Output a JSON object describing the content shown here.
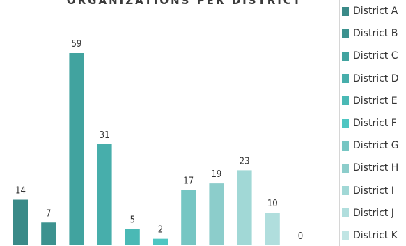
{
  "chart_data": {
    "type": "bar",
    "title": "ORGANIZATIONS PER DISTRICT",
    "categories": [
      "District A",
      "District B",
      "District C",
      "District D",
      "District E",
      "District F",
      "District G",
      "District H",
      "District I",
      "District J",
      "District K"
    ],
    "values": [
      14,
      7,
      59,
      31,
      5,
      2,
      17,
      19,
      23,
      10,
      0
    ],
    "colors": [
      "#3a8a88",
      "#3c928f",
      "#41a39f",
      "#47aeab",
      "#4ab9b5",
      "#4ec6c2",
      "#76c6c3",
      "#8ccdcb",
      "#a1d8d6",
      "#b0dedd",
      "#c0e5e4"
    ],
    "ylim": [
      0,
      65
    ],
    "legend_position": "right"
  }
}
